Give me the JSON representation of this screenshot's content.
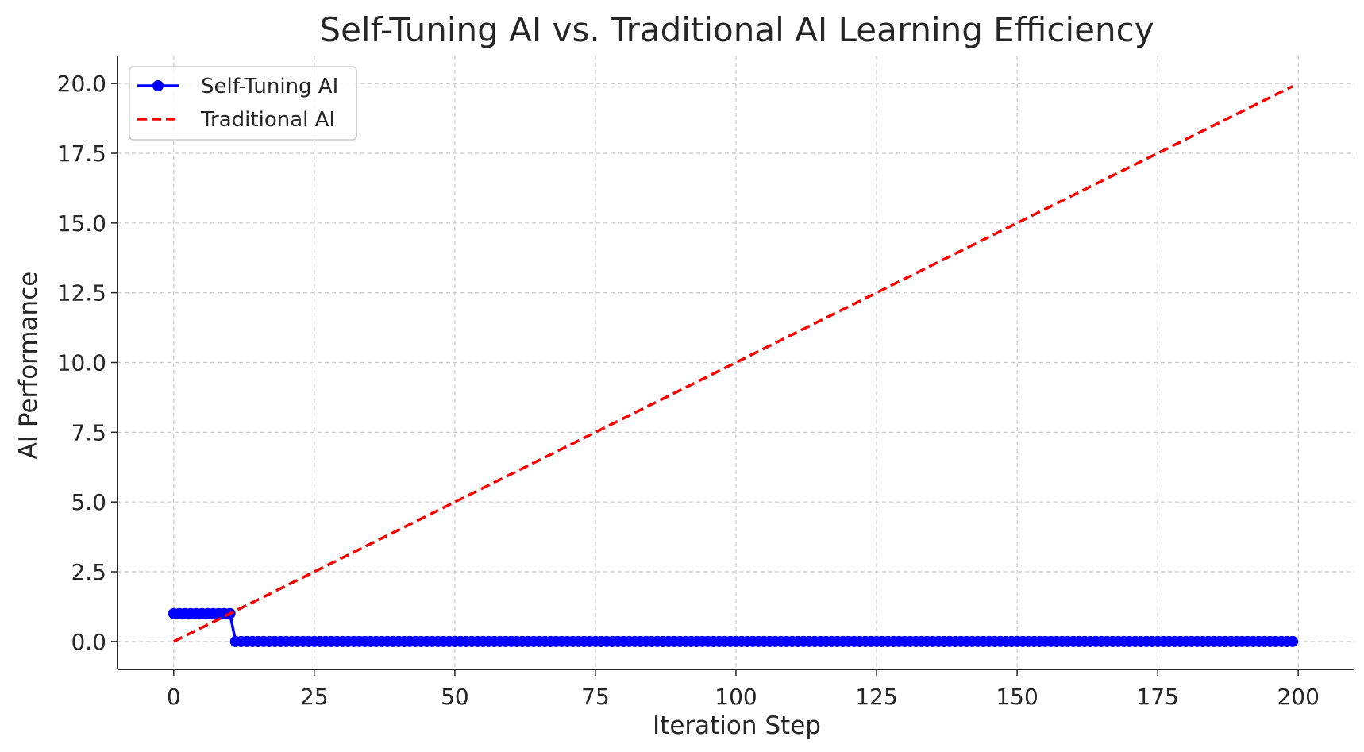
{
  "chart_data": {
    "type": "line",
    "title": "Self-Tuning AI vs. Traditional AI Learning Efficiency",
    "xlabel": "Iteration Step",
    "ylabel": "AI Performance",
    "xlim": [
      -10,
      210
    ],
    "ylim": [
      -1,
      21
    ],
    "x_ticks": [
      0,
      25,
      50,
      75,
      100,
      125,
      150,
      175,
      200
    ],
    "y_ticks": [
      0.0,
      2.5,
      5.0,
      7.5,
      10.0,
      12.5,
      15.0,
      17.5,
      20.0
    ],
    "x_tick_labels": [
      "0",
      "25",
      "50",
      "75",
      "100",
      "125",
      "150",
      "175",
      "200"
    ],
    "y_tick_labels": [
      "0.0",
      "2.5",
      "5.0",
      "7.5",
      "10.0",
      "12.5",
      "15.0",
      "17.5",
      "20.0"
    ],
    "grid": true,
    "legend_position": "top-left",
    "series": [
      {
        "name": "Self-Tuning AI",
        "color": "#0000ff",
        "style": "solid",
        "marker": "circle",
        "x_range": [
          0,
          199
        ],
        "segments": [
          {
            "from": 0,
            "to": 10,
            "value": 1
          },
          {
            "from": 11,
            "to": 199,
            "value": 0
          }
        ]
      },
      {
        "name": "Traditional AI",
        "color": "#ff0000",
        "style": "dashed",
        "marker": "none",
        "x": [
          0,
          199
        ],
        "y": [
          0,
          19.9
        ]
      }
    ]
  }
}
